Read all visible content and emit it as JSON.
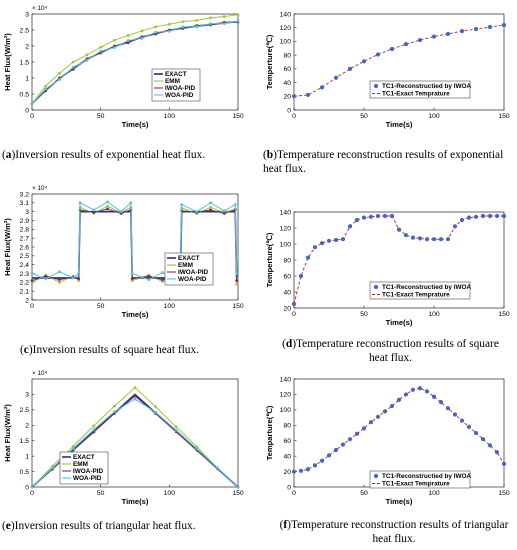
{
  "captions": [
    {
      "letter": "a",
      "text": "Inversion results of exponential heat flux."
    },
    {
      "letter": "b",
      "text": "Temperature reconstruction results of exponential heat flux."
    },
    {
      "letter": "c",
      "text": "Inversion results of square heat flux."
    },
    {
      "letter": "d",
      "text": "Temperature reconstruction results of square heat flux."
    },
    {
      "letter": "e",
      "text": "Inversion results of triangular heat flux."
    },
    {
      "letter": "f",
      "text": "Temperature reconstruction results of triangular heat flux."
    }
  ],
  "colors": {
    "EXACT": "#1f2f99",
    "EMM": "#9ac837",
    "IWOA-PID": "#7b2e5c",
    "WOA-PID": "#4fc3e0",
    "markers": "#4466c4",
    "dashed": "#cc1f1f"
  },
  "chart_data": [
    {
      "id": "a",
      "type": "line",
      "profile": "exponential",
      "ylabel": "Heat Flux(W/m²)",
      "xlabel": "Time(s)",
      "exponent": "× 10⁴",
      "xlim": [
        0,
        150
      ],
      "ylim": [
        0,
        3
      ],
      "xticks": [
        "0",
        "50",
        "100",
        "150"
      ],
      "yticks": [
        "0",
        "0.5",
        "1",
        "1.5",
        "2",
        "2.5",
        "3"
      ],
      "legend_loc": "lower-right",
      "series": [
        {
          "name": "EXACT",
          "x": [
            0,
            10,
            20,
            30,
            40,
            50,
            60,
            70,
            80,
            90,
            100,
            110,
            120,
            130,
            140,
            150
          ],
          "values": [
            0.2,
            0.62,
            0.98,
            1.3,
            1.58,
            1.8,
            1.98,
            2.13,
            2.27,
            2.39,
            2.49,
            2.56,
            2.62,
            2.67,
            2.72,
            2.76
          ]
        },
        {
          "name": "EMM",
          "x": [
            0,
            10,
            20,
            30,
            40,
            50,
            60,
            70,
            80,
            90,
            100,
            110,
            120,
            130,
            140,
            150
          ],
          "values": [
            0.2,
            0.75,
            1.15,
            1.5,
            1.72,
            1.96,
            2.18,
            2.33,
            2.47,
            2.6,
            2.68,
            2.76,
            2.8,
            2.88,
            2.92,
            2.98
          ]
        },
        {
          "name": "IWOA-PID",
          "x": [
            0,
            10,
            20,
            30,
            40,
            50,
            60,
            70,
            80,
            90,
            100,
            110,
            120,
            130,
            140,
            150
          ],
          "values": [
            0.2,
            0.6,
            1.0,
            1.27,
            1.6,
            1.78,
            2.0,
            2.1,
            2.29,
            2.37,
            2.5,
            2.55,
            2.64,
            2.66,
            2.74,
            2.75
          ]
        },
        {
          "name": "WOA-PID",
          "x": [
            0,
            10,
            20,
            30,
            40,
            50,
            60,
            70,
            80,
            90,
            100,
            110,
            120,
            130,
            140,
            150
          ],
          "values": [
            0.2,
            0.66,
            0.95,
            1.34,
            1.55,
            1.84,
            1.95,
            2.17,
            2.24,
            2.43,
            2.46,
            2.6,
            2.6,
            2.7,
            2.7,
            2.78
          ]
        }
      ]
    },
    {
      "id": "b",
      "type": "scatter",
      "profile": "exponential",
      "ylabel": "Temperture(℃)",
      "xlabel": "Time(s)",
      "xlim": [
        0,
        150
      ],
      "ylim": [
        0,
        140
      ],
      "xticks": [
        "0",
        "50",
        "100",
        "150"
      ],
      "yticks": [
        "0",
        "20",
        "40",
        "60",
        "80",
        "100",
        "120",
        "140"
      ],
      "legend_loc": "lower-right",
      "series": [
        {
          "name": "TC1-Reconstructied by IWOA",
          "x": [
            0,
            10,
            20,
            30,
            40,
            50,
            60,
            70,
            80,
            90,
            100,
            110,
            120,
            130,
            140,
            150
          ],
          "values": [
            20,
            22,
            33,
            47,
            60,
            71,
            81,
            89,
            96,
            102,
            107,
            111,
            115,
            118,
            121,
            124
          ]
        },
        {
          "name": "TC1-Exact Temprature",
          "x": [
            0,
            10,
            20,
            30,
            40,
            50,
            60,
            70,
            80,
            90,
            100,
            110,
            120,
            130,
            140,
            150
          ],
          "values": [
            20,
            22,
            33,
            47,
            60,
            71,
            81,
            89,
            96,
            102,
            107,
            111,
            115,
            118,
            121,
            124
          ]
        }
      ]
    },
    {
      "id": "c",
      "type": "line",
      "profile": "square",
      "ylabel": "Heat Flux(W/m²)",
      "xlabel": "Time(s)",
      "exponent": "× 10⁴",
      "xlim": [
        0,
        150
      ],
      "ylim": [
        2,
        3.2
      ],
      "xticks": [
        "0",
        "50",
        "100",
        "150"
      ],
      "yticks": [
        "2",
        "2.1",
        "2.2",
        "2.3",
        "2.4",
        "2.5",
        "2.6",
        "2.7",
        "2.8",
        "2.9",
        "3",
        "3.1",
        "3.2"
      ],
      "legend_loc": "lower-right",
      "series": [
        {
          "name": "EXACT",
          "x": [
            0,
            34,
            35,
            72,
            73,
            108,
            109,
            148,
            149
          ],
          "values": [
            2.25,
            2.25,
            3.0,
            3.0,
            2.25,
            2.25,
            3.0,
            3.0,
            2.25
          ]
        },
        {
          "name": "EMM",
          "x": [
            0,
            10,
            20,
            30,
            34,
            35,
            45,
            55,
            65,
            72,
            73,
            85,
            95,
            105,
            108,
            109,
            120,
            130,
            140,
            148,
            149
          ],
          "values": [
            2.2,
            2.28,
            2.2,
            2.27,
            2.22,
            3.05,
            2.98,
            3.06,
            2.99,
            3.05,
            2.22,
            2.28,
            2.21,
            2.27,
            2.22,
            3.04,
            2.98,
            3.05,
            2.99,
            3.03,
            2.18
          ]
        },
        {
          "name": "IWOA-PID",
          "x": [
            0,
            10,
            20,
            30,
            34,
            35,
            45,
            55,
            65,
            72,
            73,
            85,
            95,
            105,
            108,
            109,
            120,
            130,
            140,
            148,
            149
          ],
          "values": [
            2.22,
            2.27,
            2.23,
            2.26,
            2.24,
            3.02,
            2.99,
            3.03,
            2.98,
            3.02,
            2.24,
            2.27,
            2.23,
            2.26,
            2.24,
            3.01,
            2.99,
            3.02,
            2.98,
            3.02,
            2.22
          ]
        },
        {
          "name": "WOA-PID",
          "x": [
            0,
            10,
            20,
            30,
            34,
            35,
            45,
            55,
            65,
            72,
            73,
            85,
            95,
            105,
            108,
            109,
            120,
            130,
            140,
            148,
            149
          ],
          "values": [
            2.3,
            2.24,
            2.32,
            2.25,
            2.3,
            3.1,
            3.02,
            3.11,
            3.0,
            3.1,
            2.3,
            2.23,
            2.31,
            2.24,
            2.3,
            3.08,
            3.0,
            3.1,
            3.01,
            3.08,
            2.3
          ]
        }
      ]
    },
    {
      "id": "d",
      "type": "scatter",
      "profile": "square",
      "ylabel": "Temperture(℃)",
      "xlabel": "Time(s)",
      "xlim": [
        0,
        150
      ],
      "ylim": [
        20,
        140
      ],
      "xticks": [
        "0",
        "50",
        "100",
        "150"
      ],
      "yticks": [
        "20",
        "40",
        "60",
        "80",
        "100",
        "120",
        "140"
      ],
      "legend_loc": "lower-right",
      "series": [
        {
          "name": "TC1-Reconstructied by IWOA",
          "x": [
            0,
            5,
            10,
            15,
            20,
            25,
            30,
            35,
            40,
            45,
            50,
            55,
            60,
            65,
            70,
            75,
            80,
            85,
            90,
            95,
            100,
            105,
            110,
            115,
            120,
            125,
            130,
            135,
            140,
            145,
            150
          ],
          "values": [
            25,
            60,
            83,
            96,
            101,
            104,
            105,
            106,
            122,
            130,
            133,
            134,
            135,
            135,
            135,
            118,
            111,
            108,
            107,
            106,
            106,
            106,
            106,
            122,
            130,
            133,
            134,
            135,
            135,
            135,
            135
          ]
        },
        {
          "name": "TC1-Exact Temprature",
          "x": [
            0,
            5,
            10,
            15,
            20,
            25,
            30,
            35,
            40,
            45,
            50,
            55,
            60,
            65,
            70,
            75,
            80,
            85,
            90,
            95,
            100,
            105,
            110,
            115,
            120,
            125,
            130,
            135,
            140,
            145,
            150
          ],
          "values": [
            25,
            60,
            83,
            96,
            101,
            104,
            105,
            106,
            122,
            130,
            133,
            134,
            135,
            135,
            135,
            118,
            111,
            108,
            107,
            106,
            106,
            106,
            106,
            122,
            130,
            133,
            134,
            135,
            135,
            135,
            135
          ]
        }
      ]
    },
    {
      "id": "e",
      "type": "line",
      "profile": "triangular",
      "ylabel": "Heat Flux(W/m²)",
      "xlabel": "Time(s)",
      "exponent": "× 10⁴",
      "xlim": [
        0,
        150
      ],
      "ylim": [
        0,
        3.5
      ],
      "xticks": [
        "0",
        "50",
        "100",
        "150"
      ],
      "yticks": [
        "0",
        "0.5",
        "1",
        "1.5",
        "2",
        "2.5",
        "3"
      ],
      "legend_loc": "lower-right",
      "series": [
        {
          "name": "EXACT",
          "x": [
            0,
            75,
            150
          ],
          "values": [
            0,
            3.0,
            0
          ]
        },
        {
          "name": "EMM",
          "x": [
            0,
            15,
            30,
            45,
            60,
            75,
            90,
            105,
            120,
            135,
            150
          ],
          "values": [
            0,
            0.68,
            1.32,
            1.98,
            2.62,
            3.22,
            2.6,
            1.95,
            1.3,
            0.62,
            0
          ]
        },
        {
          "name": "IWOA-PID",
          "x": [
            0,
            15,
            30,
            45,
            60,
            75,
            90,
            105,
            120,
            135,
            150
          ],
          "values": [
            0,
            0.58,
            1.2,
            1.78,
            2.38,
            2.95,
            2.38,
            1.79,
            1.2,
            0.6,
            0
          ]
        },
        {
          "name": "WOA-PID",
          "x": [
            0,
            15,
            30,
            45,
            60,
            75,
            90,
            105,
            120,
            135,
            150
          ],
          "values": [
            0,
            0.62,
            1.25,
            1.86,
            2.44,
            2.85,
            2.42,
            1.84,
            1.24,
            0.62,
            0
          ]
        }
      ]
    },
    {
      "id": "f",
      "type": "scatter",
      "profile": "triangular",
      "ylabel": "Temparture(℃)",
      "xlabel": "Time(s)",
      "xlim": [
        0,
        150
      ],
      "ylim": [
        0,
        140
      ],
      "xticks": [
        "0",
        "50",
        "100",
        "150"
      ],
      "yticks": [
        "0",
        "20",
        "40",
        "60",
        "80",
        "100",
        "120",
        "140"
      ],
      "legend_loc": "lower-right",
      "series": [
        {
          "name": "TC1-Reconstructied by IWOA",
          "x": [
            0,
            5,
            10,
            15,
            20,
            25,
            30,
            35,
            40,
            45,
            50,
            55,
            60,
            65,
            70,
            75,
            80,
            85,
            90,
            95,
            100,
            105,
            110,
            115,
            120,
            125,
            130,
            135,
            140,
            145,
            150
          ],
          "values": [
            20,
            21,
            23,
            28,
            34,
            41,
            48,
            55,
            62,
            69,
            76,
            84,
            91,
            98,
            105,
            113,
            120,
            126,
            128,
            124,
            117,
            110,
            102,
            94,
            86,
            78,
            70,
            62,
            54,
            45,
            30
          ]
        },
        {
          "name": "TC1-Exact Temprature",
          "x": [
            0,
            5,
            10,
            15,
            20,
            25,
            30,
            35,
            40,
            45,
            50,
            55,
            60,
            65,
            70,
            75,
            80,
            85,
            90,
            95,
            100,
            105,
            110,
            115,
            120,
            125,
            130,
            135,
            140,
            145,
            150
          ],
          "values": [
            20,
            21,
            23,
            28,
            34,
            41,
            48,
            55,
            62,
            69,
            76,
            84,
            91,
            98,
            105,
            113,
            120,
            126,
            128,
            124,
            117,
            110,
            102,
            94,
            86,
            78,
            70,
            62,
            54,
            45,
            30
          ]
        }
      ]
    }
  ]
}
